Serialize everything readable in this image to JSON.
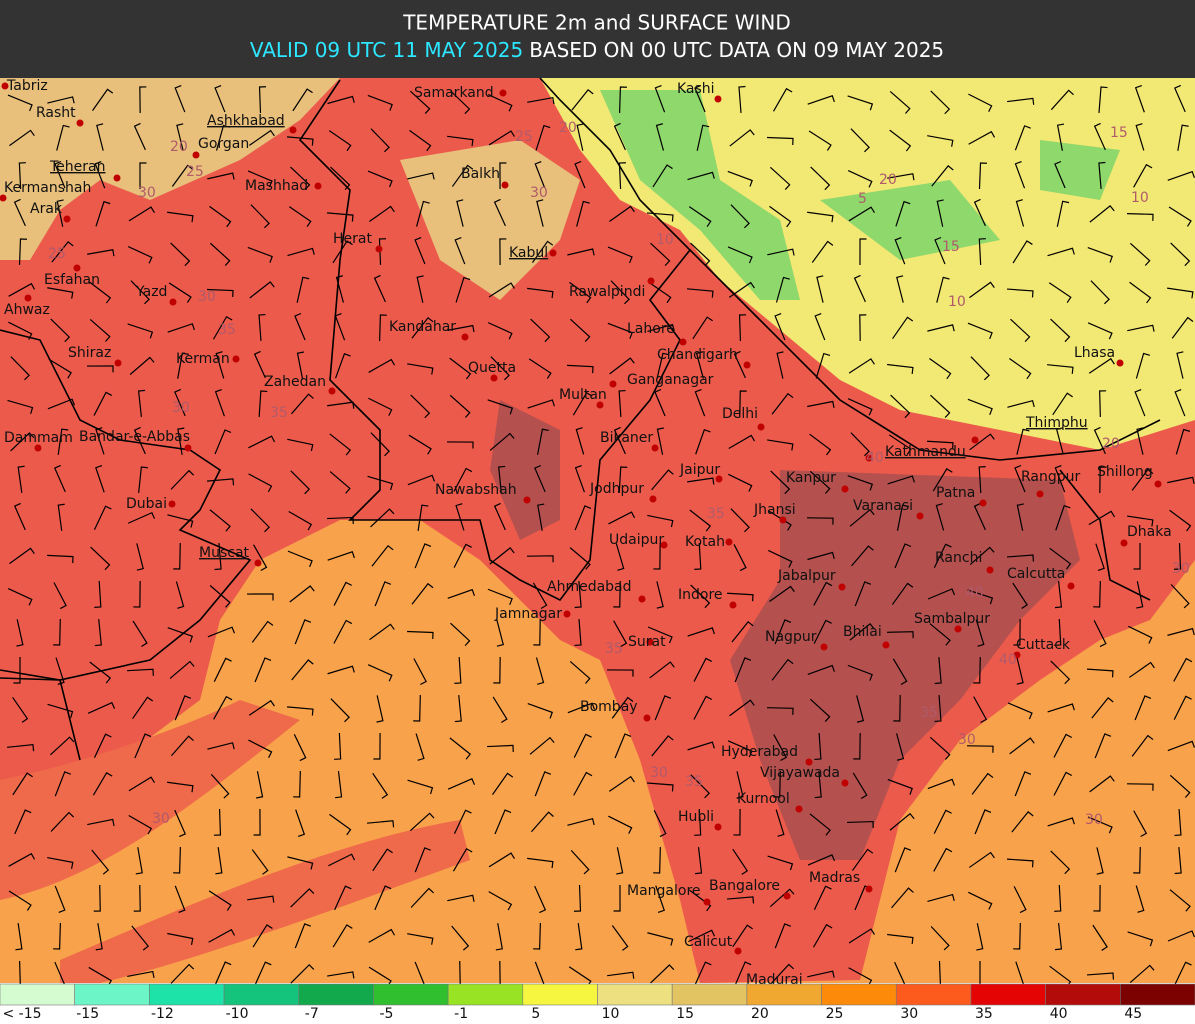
{
  "header": {
    "title": "TEMPERATURE 2m and SURFACE WIND",
    "valid": "VALID 09 UTC 11 MAY 2025",
    "based": "BASED ON 00 UTC DATA ON 09 MAY 2025"
  },
  "cities": [
    {
      "name": "Tabriz"
    },
    {
      "name": "Rasht"
    },
    {
      "name": "Ashkhabad",
      "capital": true
    },
    {
      "name": "Gorgan"
    },
    {
      "name": "Teheran",
      "capital": true
    },
    {
      "name": "Kermanshah"
    },
    {
      "name": "Mashhad"
    },
    {
      "name": "Arak"
    },
    {
      "name": "Samarkand"
    },
    {
      "name": "Kashi"
    },
    {
      "name": "Balkh"
    },
    {
      "name": "Herat"
    },
    {
      "name": "Kabul",
      "capital": true
    },
    {
      "name": "Esfahan"
    },
    {
      "name": "Yazd"
    },
    {
      "name": "Rawalpindi"
    },
    {
      "name": "Ahwaz"
    },
    {
      "name": "Kandahar"
    },
    {
      "name": "Lahore"
    },
    {
      "name": "Shiraz"
    },
    {
      "name": "Kerman"
    },
    {
      "name": "Chandigarh"
    },
    {
      "name": "Lhasa"
    },
    {
      "name": "Quetta"
    },
    {
      "name": "Ganganagar"
    },
    {
      "name": "Zahedan"
    },
    {
      "name": "Multan"
    },
    {
      "name": "Delhi"
    },
    {
      "name": "Thimphu",
      "capital": true
    },
    {
      "name": "Dammam"
    },
    {
      "name": "Bandar-e-Abbas"
    },
    {
      "name": "Bikaner"
    },
    {
      "name": "Kathmandu",
      "capital": true
    },
    {
      "name": "Jaipur"
    },
    {
      "name": "Rangpur"
    },
    {
      "name": "Shillong"
    },
    {
      "name": "Kanpur"
    },
    {
      "name": "Nawabshah"
    },
    {
      "name": "Jodhpur"
    },
    {
      "name": "Patna"
    },
    {
      "name": "Dubai"
    },
    {
      "name": "Varanasi"
    },
    {
      "name": "Jhansi"
    },
    {
      "name": "Kotah"
    },
    {
      "name": "Udaipur"
    },
    {
      "name": "Dhaka"
    },
    {
      "name": "Muscat",
      "capital": true
    },
    {
      "name": "Ranchi"
    },
    {
      "name": "Calcutta"
    },
    {
      "name": "Jabalpur"
    },
    {
      "name": "Ahmedabad"
    },
    {
      "name": "Indore"
    },
    {
      "name": "Jamnagar"
    },
    {
      "name": "Sambalpur"
    },
    {
      "name": "Nagpur"
    },
    {
      "name": "Bhilai"
    },
    {
      "name": "Surat"
    },
    {
      "name": "Cuttack"
    },
    {
      "name": "Bombay"
    },
    {
      "name": "Hyderabad"
    },
    {
      "name": "Vijayawada"
    },
    {
      "name": "Kurnool"
    },
    {
      "name": "Hubli"
    },
    {
      "name": "Madras"
    },
    {
      "name": "Bangalore"
    },
    {
      "name": "Mangalore"
    },
    {
      "name": "Calicut"
    },
    {
      "name": "Madurai"
    }
  ],
  "contour_labels": [
    25,
    30,
    20,
    25,
    30,
    35,
    30,
    35,
    20,
    30,
    25,
    10,
    5,
    20,
    15,
    10,
    10,
    15,
    20,
    40,
    35,
    40,
    30,
    35,
    30,
    35,
    30,
    40,
    35,
    30,
    30
  ],
  "legend": [
    {
      "label": "< -15",
      "color": "#d4fcd0"
    },
    {
      "value": -15,
      "color": "#6cf6c8"
    },
    {
      "value": -12,
      "color": "#1ee3a8"
    },
    {
      "value": -10,
      "color": "#14c47c"
    },
    {
      "value": -7,
      "color": "#12a84c"
    },
    {
      "value": -5,
      "color": "#2fbf2f"
    },
    {
      "value": -1,
      "color": "#98e424"
    },
    {
      "value": 5,
      "color": "#f6f640"
    },
    {
      "value": 10,
      "color": "#ece080"
    },
    {
      "value": 15,
      "color": "#e2c462"
    },
    {
      "value": 20,
      "color": "#f0a830"
    },
    {
      "value": 25,
      "color": "#fe8a0a"
    },
    {
      "value": 30,
      "color": "#fd5a1e"
    },
    {
      "value": 35,
      "color": "#e40404"
    },
    {
      "value": 40,
      "color": "#b30a0a"
    },
    {
      "value": 45,
      "color": "#7c0202"
    }
  ]
}
